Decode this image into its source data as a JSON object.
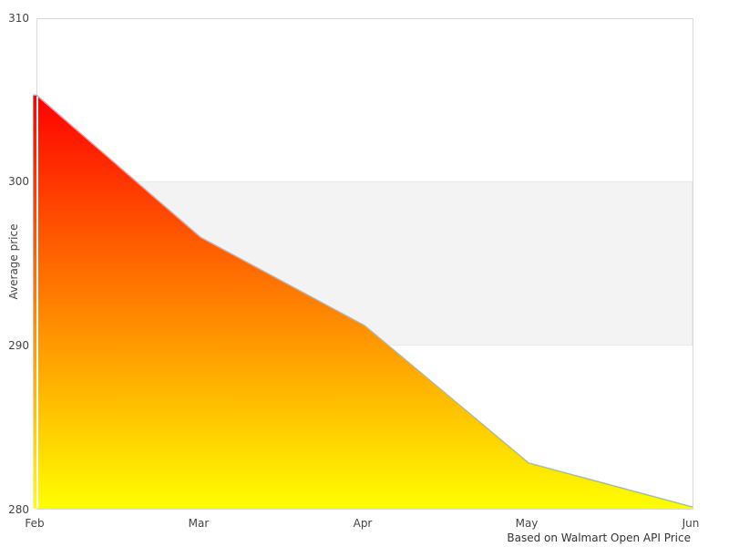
{
  "chart_data": {
    "type": "area",
    "title": "",
    "x": [
      "Feb",
      "Mar",
      "Apr",
      "May",
      "Jun"
    ],
    "values": [
      305.3,
      296.6,
      291.2,
      282.8,
      280.1
    ],
    "xtick_labels": [
      "Feb",
      "Mar",
      "Apr",
      "May",
      "Jun"
    ],
    "ytick_labels": [
      "310",
      "300",
      "290",
      "280"
    ],
    "yticks": [
      310,
      300,
      290,
      280
    ],
    "ylim": [
      280,
      310
    ],
    "ylabel": "Average price",
    "xlabel": "",
    "caption": "Based on Walmart Open API Price",
    "band": {
      "from": 290,
      "to": 300
    },
    "legend": "none",
    "grid": "off",
    "colors": {
      "gradient_top": "#ff0000",
      "gradient_bottom": "#ffff00",
      "line": "#9cb8d7",
      "band_fill": "#f3f3f3",
      "band_edge": "#e7e7e7",
      "plot_border": "#d9d9d9",
      "tick_text": "#444444"
    }
  }
}
